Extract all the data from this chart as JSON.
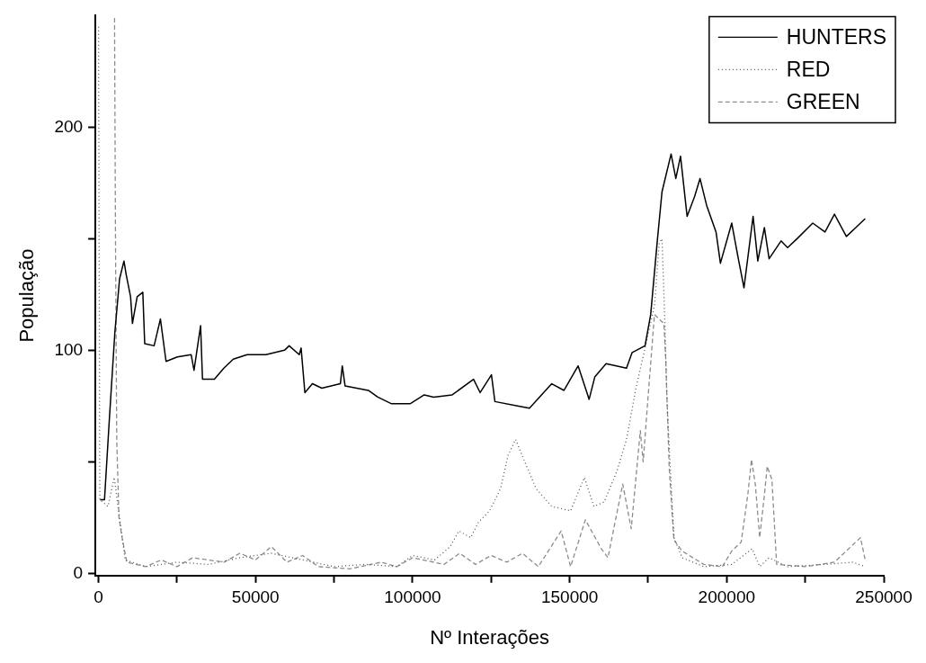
{
  "chart_data": {
    "type": "line",
    "xlabel": "Nº Interações",
    "ylabel": "População",
    "xlim": [
      -1000,
      250000
    ],
    "ylim": [
      -1,
      250
    ],
    "xticks": [
      0,
      {
        "value": 25000,
        "label": null
      },
      50000,
      {
        "value": 75000,
        "label": null
      },
      100000,
      {
        "value": 125000,
        "label": null
      },
      150000,
      {
        "value": 175000,
        "label": null
      },
      200000,
      {
        "value": 225000,
        "label": null
      },
      250000
    ],
    "yticks": [
      0,
      {
        "value": 50,
        "label": null
      },
      100,
      {
        "value": 150,
        "label": null
      },
      200
    ],
    "legend": "top right",
    "marker": "none",
    "series": [
      {
        "name": "HUNTERS",
        "color": "#000000",
        "line_style": "solid",
        "x": [
          500,
          1900,
          3400,
          5200,
          6700,
          8100,
          8800,
          10200,
          10800,
          12300,
          14100,
          14700,
          17700,
          19700,
          21500,
          25100,
          29500,
          30400,
          32500,
          33100,
          36900,
          39900,
          42900,
          47300,
          53300,
          59200,
          60700,
          63900,
          64500,
          65700,
          68100,
          71100,
          77000,
          77600,
          78500,
          85900,
          88900,
          93300,
          99200,
          103700,
          106700,
          112600,
          119400,
          121500,
          125100,
          126200,
          133400,
          137200,
          144300,
          148200,
          152700,
          156200,
          158000,
          161600,
          168100,
          169900,
          174000,
          175800,
          177900,
          179400,
          182300,
          183800,
          185300,
          187400,
          189800,
          191500,
          193600,
          196600,
          198000,
          201600,
          203700,
          205500,
          208400,
          209900,
          212000,
          213500,
          217300,
          219400,
          222400,
          227400,
          231300,
          234300,
          238100,
          241100,
          244100
        ],
        "values": [
          33,
          33,
          68,
          108,
          132,
          140,
          134,
          124,
          112,
          124,
          126,
          103,
          102,
          114,
          95,
          97,
          98,
          91,
          111,
          87,
          87,
          92,
          96,
          98,
          98,
          100,
          102,
          98,
          101,
          81,
          85,
          83,
          85,
          93,
          84,
          82,
          79,
          76,
          76,
          80,
          79,
          80,
          87,
          81,
          89,
          77,
          75,
          74,
          85,
          82,
          93,
          78,
          88,
          94,
          92,
          99,
          102,
          116,
          149,
          171,
          188,
          177,
          187,
          160,
          169,
          177,
          165,
          153,
          139,
          157,
          141,
          128,
          160,
          140,
          155,
          141,
          149,
          146,
          150,
          157,
          153,
          161,
          151,
          155,
          159
        ]
      },
      {
        "name": "RED",
        "color": "#555555",
        "line_style": "dotted",
        "x": [
          0,
          400,
          3000,
          5000,
          6500,
          8500,
          15000,
          25000,
          35000,
          45000,
          55000,
          65000,
          75000,
          85000,
          95000,
          100000,
          107000,
          112000,
          114700,
          118500,
          121000,
          124500,
          128000,
          130400,
          132800,
          135400,
          139300,
          144300,
          150300,
          154700,
          157700,
          161000,
          165100,
          168100,
          171100,
          174000,
          177000,
          178500,
          179400,
          180300,
          180900,
          182300,
          183200,
          185800,
          192700,
          201600,
          208100,
          210500,
          213500,
          219400,
          231300,
          240200,
          244100
        ],
        "values": [
          245,
          33,
          30,
          43,
          27,
          6,
          3,
          5,
          4,
          7,
          9,
          6,
          3,
          4,
          3,
          8,
          6,
          12,
          19,
          16,
          23,
          28,
          38,
          53,
          60,
          51,
          38,
          30,
          28,
          43,
          30,
          32,
          46,
          60,
          83,
          101,
          120,
          148,
          150,
          113,
          80,
          40,
          16,
          7,
          3,
          4,
          11,
          3,
          7,
          3,
          4,
          5,
          3
        ]
      },
      {
        "name": "GREEN",
        "color": "#8c8c8c",
        "line_style": "dashed",
        "x": [
          5100,
          5400,
          5800,
          6500,
          7500,
          9000,
          15000,
          20000,
          25000,
          30000,
          40000,
          45000,
          50000,
          55000,
          60000,
          65000,
          70000,
          80000,
          90000,
          95000,
          100000,
          110000,
          115000,
          120000,
          125000,
          130000,
          135000,
          140000,
          147300,
          150300,
          155000,
          160100,
          162200,
          163900,
          166900,
          169600,
          172500,
          173400,
          175400,
          177000,
          180000,
          180600,
          181700,
          183200,
          185800,
          192700,
          198600,
          201600,
          204600,
          206700,
          207900,
          209100,
          210500,
          212000,
          212900,
          214400,
          215900,
          225400,
          234300,
          242600,
          244100
        ],
        "values": [
          249,
          150,
          60,
          25,
          16,
          5,
          3,
          6,
          3,
          7,
          5,
          9,
          6,
          12,
          5,
          8,
          3,
          2,
          5,
          3,
          7,
          4,
          9,
          4,
          8,
          5,
          9,
          3,
          19,
          3,
          24,
          11,
          7,
          19,
          40,
          20,
          64,
          50,
          87,
          116,
          112,
          96,
          47,
          15,
          10,
          4,
          3,
          10,
          14,
          35,
          51,
          40,
          16,
          35,
          48,
          42,
          4,
          3,
          5,
          16,
          6
        ]
      }
    ]
  }
}
